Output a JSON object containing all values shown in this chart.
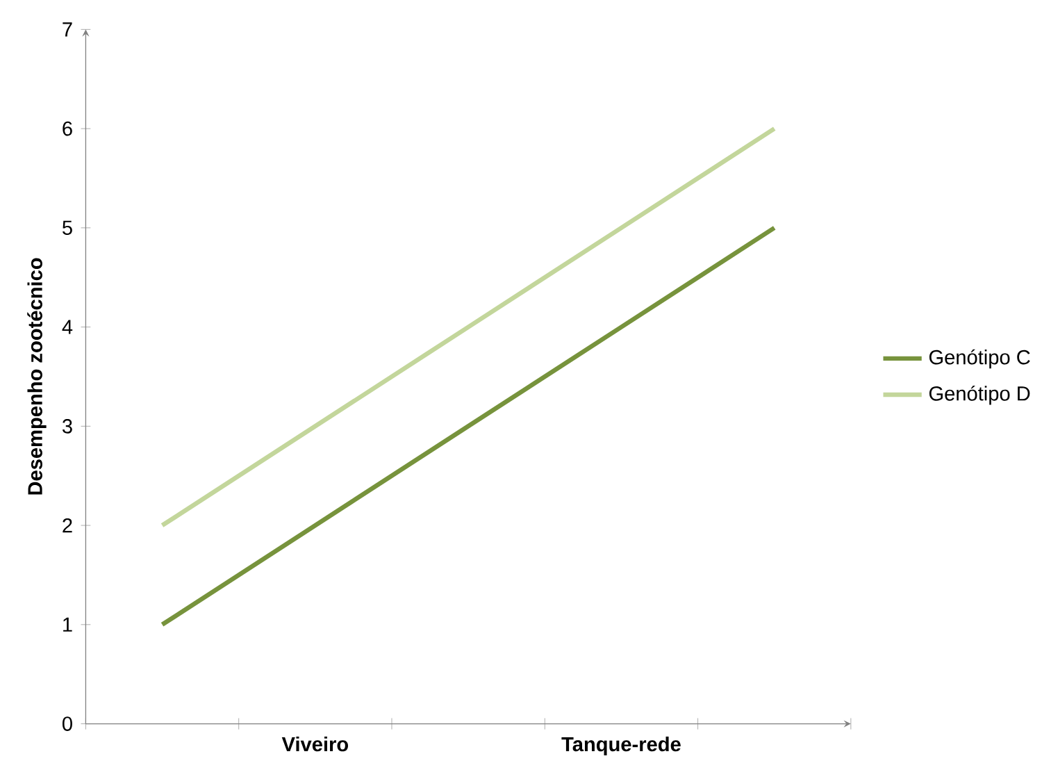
{
  "chart_data": {
    "type": "line",
    "ylabel": "Desempenho zootécnico",
    "categories": [
      null,
      "Viveiro",
      null,
      "Tanque-rede",
      null
    ],
    "series": [
      {
        "name": "Genótipo C",
        "color": "#77933c",
        "values": [
          1,
          2,
          3,
          4,
          5
        ]
      },
      {
        "name": "Genótipo D",
        "color": "#c3d69b",
        "values": [
          2,
          3,
          4,
          5,
          6
        ]
      }
    ],
    "ylim": [
      0,
      7
    ],
    "yticks": [
      0,
      1,
      2,
      3,
      4,
      5,
      6,
      7
    ],
    "legend": "right",
    "grid": false,
    "marker": "none",
    "line_style": "solid"
  }
}
